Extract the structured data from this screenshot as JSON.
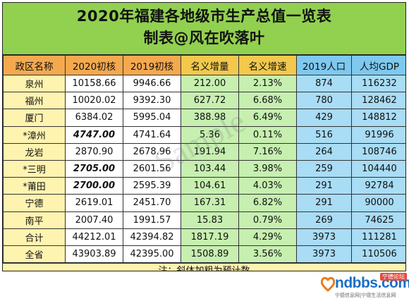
{
  "title": "2020年福建各地级市生产总值一览表",
  "subtitle": "制表@风在吹落叶",
  "headers": [
    "政区名称",
    "2020初核",
    "2019初核",
    "名义增量",
    "名义增速",
    "2019人口",
    "人均GDP"
  ],
  "rows": [
    {
      "name": "泉州",
      "v2020": "10158.66",
      "v2019": "9946.66",
      "inc": "212.00",
      "rate": "2.13%",
      "pop": "874",
      "gdp_pc": "116232",
      "estimate": false
    },
    {
      "name": "福州",
      "v2020": "10020.02",
      "v2019": "9392.30",
      "inc": "627.72",
      "rate": "6.68%",
      "pop": "780",
      "gdp_pc": "128462",
      "estimate": false
    },
    {
      "name": "厦门",
      "v2020": "6384.02",
      "v2019": "5995.04",
      "inc": "388.98",
      "rate": "6.49%",
      "pop": "429",
      "gdp_pc": "148812",
      "estimate": false
    },
    {
      "name": "*漳州",
      "v2020": "4747.00",
      "v2019": "4741.64",
      "inc": "5.36",
      "rate": "0.11%",
      "pop": "516",
      "gdp_pc": "91996",
      "estimate": true
    },
    {
      "name": "龙岩",
      "v2020": "2870.90",
      "v2019": "2678.96",
      "inc": "191.94",
      "rate": "7.16%",
      "pop": "264",
      "gdp_pc": "108746",
      "estimate": false
    },
    {
      "name": "*三明",
      "v2020": "2705.00",
      "v2019": "2601.56",
      "inc": "103.44",
      "rate": "3.98%",
      "pop": "259",
      "gdp_pc": "104440",
      "estimate": true
    },
    {
      "name": "*莆田",
      "v2020": "2700.00",
      "v2019": "2595.39",
      "inc": "104.61",
      "rate": "4.03%",
      "pop": "291",
      "gdp_pc": "92784",
      "estimate": true
    },
    {
      "name": "宁德",
      "v2020": "2619.01",
      "v2019": "2451.70",
      "inc": "167.31",
      "rate": "6.82%",
      "pop": "291",
      "gdp_pc": "90000",
      "estimate": false
    },
    {
      "name": "南平",
      "v2020": "2007.40",
      "v2019": "1991.57",
      "inc": "15.83",
      "rate": "0.79%",
      "pop": "269",
      "gdp_pc": "74625",
      "estimate": false
    },
    {
      "name": "合计",
      "v2020": "44212.01",
      "v2019": "42394.82",
      "inc": "1817.19",
      "rate": "4.29%",
      "pop": "3973",
      "gdp_pc": "111281",
      "estimate": false
    },
    {
      "name": "全省",
      "v2020": "43903.89",
      "v2019": "42395.00",
      "inc": "1508.89",
      "rate": "3.56%",
      "pop": "3973",
      "gdp_pc": "110506",
      "estimate": false
    }
  ],
  "note": "注：斜体加粗为预计数",
  "watermark": "Sample",
  "logo": {
    "text": "ndbbs.com",
    "badge": "宁德论坛",
    "tagline": "宁德信息网|宁德生活信息网"
  },
  "colors": {
    "title_bg": "#92d050",
    "header_orange": "#f4a94f",
    "header_yellow": "#f2c94c",
    "header_blue": "#7ec9ef",
    "name_col": "#fff3b0",
    "green_cols": "#c6efb0",
    "blue_cols": "#a9dcf5",
    "logo_blue": "#1a6fc9"
  }
}
